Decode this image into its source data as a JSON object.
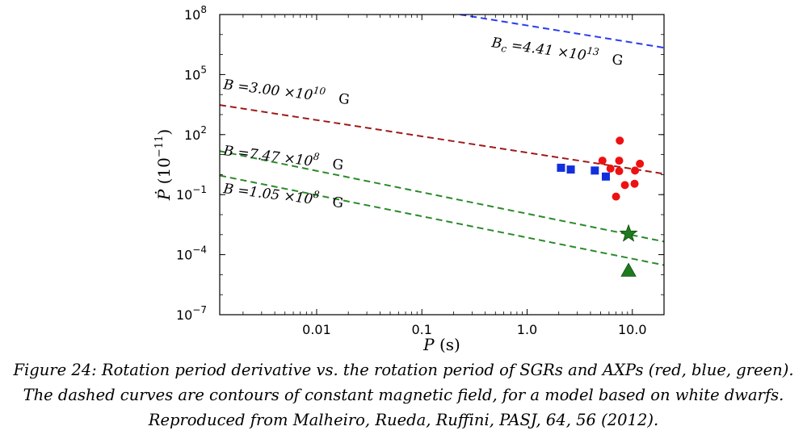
{
  "chart_data": {
    "type": "scatter",
    "xscale": "log",
    "yscale": "log",
    "xlim": [
      0.0012,
      20
    ],
    "ylim": [
      1e-07,
      100000000.0
    ],
    "x_ticks": [
      {
        "value": 0.01,
        "label": "0.01"
      },
      {
        "value": 0.1,
        "label": "0.1"
      },
      {
        "value": 1.0,
        "label": "1.0"
      },
      {
        "value": 10.0,
        "label": "10.0"
      }
    ],
    "y_ticks": [
      {
        "value": 1e-07,
        "base": "10",
        "exp": "−7"
      },
      {
        "value": 0.0001,
        "base": "10",
        "exp": "−4"
      },
      {
        "value": 0.1,
        "base": "10",
        "exp": "−1"
      },
      {
        "value": 100.0,
        "base": "10",
        "exp": "2"
      },
      {
        "value": 100000.0,
        "base": "10",
        "exp": "5"
      },
      {
        "value": 100000000.0,
        "base": "10",
        "exp": "8"
      }
    ],
    "xlabel": {
      "var": "P",
      "unit": " (s)"
    },
    "ylabel": {
      "var": "Ṗ",
      "unit": " (10",
      "exp": "−11",
      "close": ")"
    },
    "lines": [
      {
        "label_main": "B",
        "label_sub": "c",
        "label_eq": " =4.41 ×10",
        "label_exp": "13",
        "label_unit": " G",
        "color": "#2a3cf0",
        "x": [
          0.23,
          20
        ],
        "y": [
          100000000.0,
          2200000.0
        ]
      },
      {
        "label_main": "B",
        "label_sub": "",
        "label_eq": " =3.00 ×10",
        "label_exp": "10",
        "label_unit": " G",
        "color": "#a01a1a",
        "x": [
          0.0012,
          20
        ],
        "y": [
          3000,
          1.1
        ]
      },
      {
        "label_main": "B",
        "label_sub": "",
        "label_eq": " =7.47 ×10",
        "label_exp": "8",
        "label_unit": " G",
        "color": "#2a8a2a",
        "x": [
          0.0012,
          20
        ],
        "y": [
          15,
          0.00045
        ]
      },
      {
        "label_main": "B",
        "label_sub": "",
        "label_eq": " =1.05 ×10",
        "label_exp": "8",
        "label_unit": " G",
        "color": "#2a8a2a",
        "x": [
          0.0012,
          20
        ],
        "y": [
          0.9,
          3e-05
        ]
      }
    ],
    "series": [
      {
        "marker": "circle",
        "color": "#ee1111",
        "points": [
          [
            7.6,
            50
          ],
          [
            5.2,
            5
          ],
          [
            7.5,
            5
          ],
          [
            6.2,
            2
          ],
          [
            7.5,
            1.5
          ],
          [
            10.6,
            1.6
          ],
          [
            11.8,
            3.5
          ],
          [
            8.5,
            0.3
          ],
          [
            10.5,
            0.35
          ],
          [
            7.0,
            0.08
          ]
        ]
      },
      {
        "marker": "square",
        "color": "#1130dd",
        "points": [
          [
            2.1,
            2.2
          ],
          [
            2.6,
            1.8
          ],
          [
            4.4,
            1.6
          ],
          [
            5.6,
            0.8
          ]
        ]
      },
      {
        "marker": "star",
        "color": "#1e7a1e",
        "points": [
          [
            9.2,
            0.0011
          ]
        ]
      },
      {
        "marker": "triangle",
        "color": "#1e7a1e",
        "points": [
          [
            9.2,
            1.6e-05
          ]
        ]
      }
    ]
  },
  "caption_lines": [
    "Figure 24: Rotation period derivative vs. the rotation period of SGRs and AXPs (red, blue, green).",
    "The dashed curves are contours of constant magnetic field, for a model based on white dwarfs.",
    "Reproduced from Malheiro, Rueda, Ruffini, PASJ, 64, 56 (2012)."
  ]
}
